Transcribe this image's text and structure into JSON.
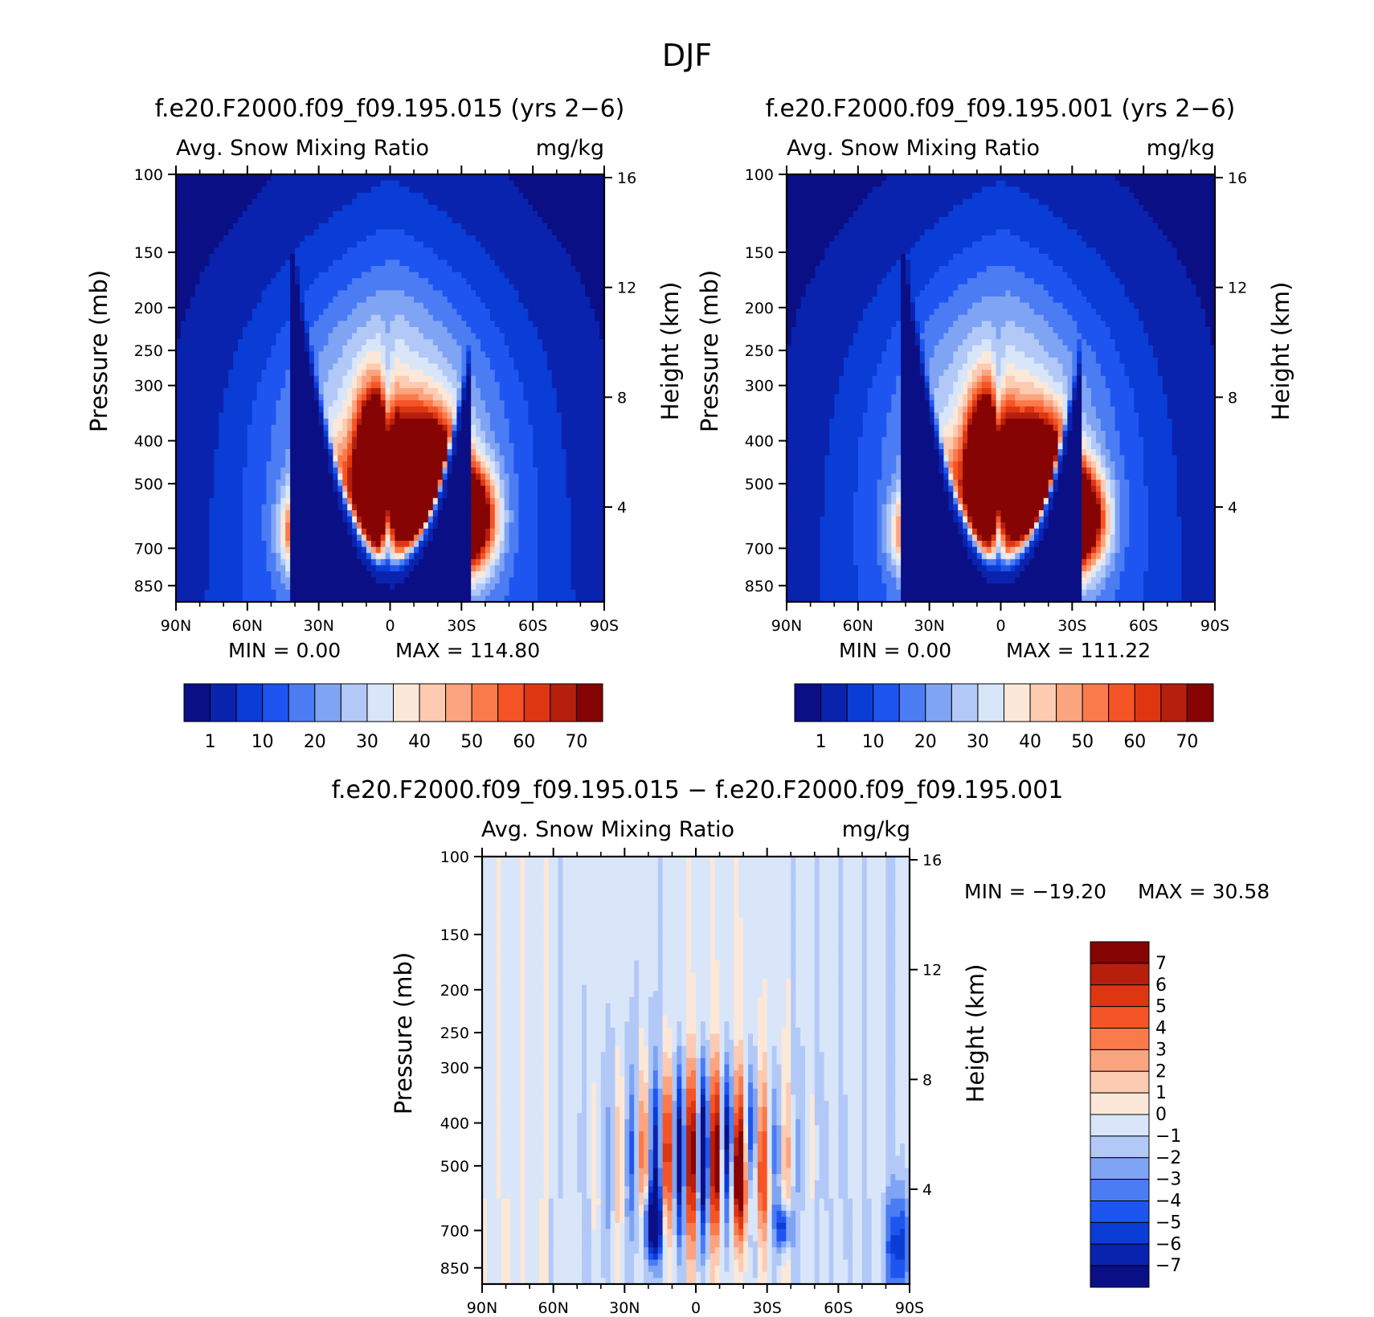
{
  "figure_title": "DJF",
  "colors": {
    "seq": [
      "#0a0f85",
      "#0a23ae",
      "#0a3cd6",
      "#1e55f0",
      "#4b7cf3",
      "#80a4f4",
      "#b2c9f8",
      "#d9e6f9",
      "#fce8d8",
      "#fccbb2",
      "#fba47f",
      "#fa7a4b",
      "#f55427",
      "#df3612",
      "#b51f0c",
      "#860404"
    ],
    "diff": [
      "#0a0f85",
      "#0a23ae",
      "#0a3cd6",
      "#1e55f0",
      "#4b7cf3",
      "#80a4f4",
      "#b2c9f8",
      "#d9e6f9",
      "#fce8d8",
      "#fccbb2",
      "#fba47f",
      "#fa7a4b",
      "#f55427",
      "#df3612",
      "#b51f0c",
      "#860404"
    ]
  },
  "panels": [
    {
      "title": "f.e20.F2000.f09_f09.195.015 (yrs 2−6)",
      "left_label": "Avg. Snow Mixing Ratio",
      "right_label": "mg/kg",
      "ylabel": "Pressure (mb)",
      "ylabel2": "Height (km)",
      "min_text": "MIN =     0.00",
      "max_text": "MAX  =  114.80"
    },
    {
      "title": "f.e20.F2000.f09_f09.195.001 (yrs 2−6)",
      "left_label": "Avg. Snow Mixing Ratio",
      "right_label": "mg/kg",
      "ylabel": "Pressure (mb)",
      "ylabel2": "Height (km)",
      "min_text": "MIN =     0.00",
      "max_text": "MAX  =  111.22"
    },
    {
      "title": "f.e20.F2000.f09_f09.195.015 − f.e20.F2000.f09_f09.195.001",
      "left_label": "Avg. Snow Mixing Ratio",
      "right_label": "mg/kg",
      "ylabel": "Pressure (mb)",
      "ylabel2": "Height (km)",
      "min_text": "MIN  =  −19.20",
      "max_text": "MAX  =    30.58"
    }
  ],
  "chart_data": [
    {
      "type": "heatmap",
      "title": "f.e20.F2000.f09_f09.195.015 (yrs 2−6)",
      "variable": "Avg. Snow Mixing Ratio",
      "units": "mg/kg",
      "xlabel": "",
      "ylabel": "Pressure (mb)",
      "ylabel_right": "Height (km)",
      "x_ticks": [
        "90N",
        "60N",
        "30N",
        "0",
        "30S",
        "60S",
        "90S"
      ],
      "y_ticks": [
        100,
        150,
        200,
        250,
        300,
        400,
        500,
        700,
        850
      ],
      "y_right_ticks": [
        16,
        12,
        8,
        4
      ],
      "y_scale": "log-pressure",
      "colorbar_levels": [
        1,
        5,
        10,
        15,
        20,
        25,
        30,
        35,
        40,
        45,
        50,
        55,
        60,
        65,
        70
      ],
      "colorbar_tick_labels": [
        "1",
        "10",
        "20",
        "30",
        "40",
        "50",
        "60",
        "70"
      ],
      "min": 0.0,
      "max": 114.8
    },
    {
      "type": "heatmap",
      "title": "f.e20.F2000.f09_f09.195.001 (yrs 2−6)",
      "variable": "Avg. Snow Mixing Ratio",
      "units": "mg/kg",
      "xlabel": "",
      "ylabel": "Pressure (mb)",
      "ylabel_right": "Height (km)",
      "x_ticks": [
        "90N",
        "60N",
        "30N",
        "0",
        "30S",
        "60S",
        "90S"
      ],
      "y_ticks": [
        100,
        150,
        200,
        250,
        300,
        400,
        500,
        700,
        850
      ],
      "y_right_ticks": [
        16,
        12,
        8,
        4
      ],
      "y_scale": "log-pressure",
      "colorbar_levels": [
        1,
        5,
        10,
        15,
        20,
        25,
        30,
        35,
        40,
        45,
        50,
        55,
        60,
        65,
        70
      ],
      "colorbar_tick_labels": [
        "1",
        "10",
        "20",
        "30",
        "40",
        "50",
        "60",
        "70"
      ],
      "min": 0.0,
      "max": 111.22
    },
    {
      "type": "heatmap",
      "title": "f.e20.F2000.f09_f09.195.015 − f.e20.F2000.f09_f09.195.001",
      "variable": "Avg. Snow Mixing Ratio",
      "units": "mg/kg",
      "xlabel": "",
      "ylabel": "Pressure (mb)",
      "ylabel_right": "Height (km)",
      "x_ticks": [
        "90N",
        "60N",
        "30N",
        "0",
        "30S",
        "60S",
        "90S"
      ],
      "y_ticks": [
        100,
        150,
        200,
        250,
        300,
        400,
        500,
        700,
        850
      ],
      "y_right_ticks": [
        16,
        12,
        8,
        4
      ],
      "y_scale": "log-pressure",
      "colorbar_levels": [
        -7,
        -6,
        -5,
        -4,
        -3,
        -2,
        -1,
        0,
        1,
        2,
        3,
        4,
        5,
        6,
        7
      ],
      "colorbar_tick_labels": [
        "7",
        "6",
        "5",
        "4",
        "3",
        "2",
        "1",
        "0",
        "−1",
        "−2",
        "−3",
        "−4",
        "−5",
        "−6",
        "−7"
      ],
      "min": -19.2,
      "max": 30.58
    }
  ]
}
